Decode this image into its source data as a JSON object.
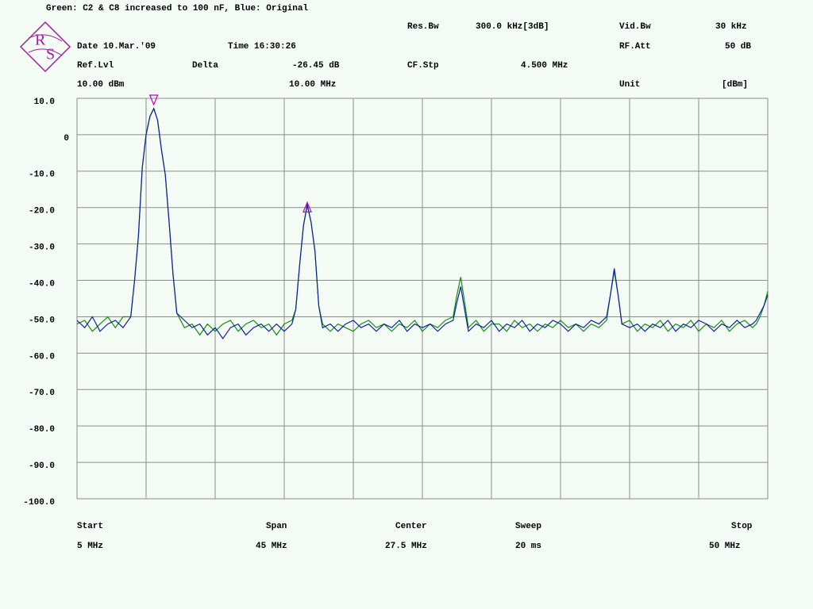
{
  "header": {
    "logo": [
      "R",
      "S"
    ],
    "res_bw_label": "Res.Bw",
    "res_bw": "300.0 kHz[3dB]",
    "vid_bw_label": "Vid.Bw",
    "vid_bw": "30 kHz",
    "date": "Date 10.Mar.'09",
    "time": "Time 16:30:26",
    "rf_att_label": "RF.Att",
    "rf_att": "50 dB",
    "ref_lvl_label": "Ref.Lvl",
    "ref_lvl": "10.00 dBm",
    "delta_label": "Delta",
    "delta": "-26.45 dB",
    "delta_freq": "10.00 MHz",
    "cf_stp_label": "CF.Stp",
    "cf_stp": "4.500 MHz",
    "unit_label": "Unit",
    "unit": "[dBm]"
  },
  "footer": {
    "start_label": "Start",
    "start": "5 MHz",
    "span_label": "Span",
    "span": "45 MHz",
    "center_label": "Center",
    "center": "27.5 MHz",
    "sweep_label": "Sweep",
    "sweep": "20 ms",
    "stop_label": "Stop",
    "stop": "50 MHz"
  },
  "chart_data": {
    "type": "line",
    "title": "Green: C2 & C8 increased to 100 nF, Blue: Original",
    "x": [
      5,
      5.5,
      6,
      6.5,
      7,
      7.5,
      8,
      8.5,
      8.75,
      9,
      9.25,
      9.5,
      9.75,
      10,
      10.25,
      10.5,
      10.75,
      11,
      11.25,
      11.5,
      12,
      12.5,
      13,
      13.5,
      14,
      14.5,
      15,
      15.5,
      16,
      16.5,
      17,
      17.5,
      18,
      18.5,
      19,
      19.25,
      19.5,
      19.75,
      20,
      20.25,
      20.5,
      20.75,
      21,
      21.5,
      22,
      22.5,
      23,
      23.5,
      24,
      24.5,
      25,
      25.5,
      26,
      26.5,
      27,
      27.5,
      28,
      28.5,
      29,
      29.5,
      29.75,
      30,
      30.25,
      30.5,
      31,
      31.5,
      32,
      32.5,
      33,
      33.5,
      34,
      34.5,
      35,
      35.5,
      36,
      36.5,
      37,
      37.5,
      38,
      38.5,
      39,
      39.5,
      39.75,
      40,
      40.25,
      40.5,
      41,
      41.5,
      42,
      42.5,
      43,
      43.5,
      44,
      44.5,
      45,
      45.5,
      46,
      46.5,
      47,
      47.5,
      48,
      48.5,
      49,
      49.25,
      49.5,
      49.75,
      50
    ],
    "series": [
      {
        "color": "#109010",
        "values": [
          -52,
          -51,
          -54,
          -52,
          -50,
          -53,
          -50,
          -50,
          -40,
          -28,
          -9,
          0,
          5,
          7.2,
          4,
          -4,
          -11,
          -24,
          -38,
          -49,
          -53,
          -52,
          -55,
          -52,
          -54,
          -52,
          -51,
          -54,
          -52,
          -51,
          -53,
          -52,
          -55,
          -52,
          -51,
          -48,
          -36,
          -25,
          -19.5,
          -24,
          -32,
          -47,
          -52,
          -54,
          -52,
          -53,
          -54,
          -52,
          -51,
          -53,
          -52,
          -54,
          -52,
          -53,
          -51,
          -54,
          -52,
          -53,
          -51,
          -50,
          -44,
          -39.1,
          -46,
          -53,
          -51,
          -54,
          -52,
          -52,
          -54,
          -51,
          -53,
          -52,
          -54,
          -52,
          -53,
          -51,
          -53,
          -52,
          -54,
          -52,
          -53,
          -51,
          -44,
          -37.5,
          -44,
          -52,
          -51,
          -54,
          -52,
          -53,
          -51,
          -54,
          -52,
          -53,
          -51,
          -54,
          -52,
          -53,
          -51,
          -54,
          -52,
          -51,
          -53,
          -52,
          -50,
          -47,
          -43
        ]
      },
      {
        "color": "#1020a0",
        "values": [
          -51,
          -53,
          -50,
          -54,
          -52,
          -51,
          -53,
          -50,
          -40,
          -28,
          -9,
          0,
          5,
          7.2,
          4,
          -4,
          -11,
          -24,
          -38,
          -49,
          -51,
          -53,
          -52,
          -55,
          -53,
          -56,
          -53,
          -52,
          -55,
          -53,
          -52,
          -54,
          -52,
          -54,
          -52,
          -48,
          -36,
          -25,
          -19.1,
          -24,
          -32,
          -47,
          -53,
          -52,
          -54,
          -52,
          -51,
          -53,
          -52,
          -54,
          -52,
          -53,
          -51,
          -54,
          -52,
          -53,
          -52,
          -54,
          -52,
          -51,
          -46,
          -41.7,
          -48,
          -54,
          -52,
          -53,
          -51,
          -54,
          -52,
          -53,
          -51,
          -54,
          -52,
          -53,
          -51,
          -52,
          -54,
          -52,
          -53,
          -51,
          -52,
          -50,
          -44,
          -36.7,
          -44,
          -52,
          -53,
          -52,
          -54,
          -52,
          -53,
          -51,
          -54,
          -52,
          -53,
          -51,
          -52,
          -54,
          -52,
          -53,
          -51,
          -53,
          -52,
          -51,
          -49,
          -47,
          -44
        ]
      }
    ],
    "markers": [
      {
        "x": 10,
        "y": 7.2
      },
      {
        "x": 20,
        "y": -19.25
      }
    ],
    "marker_color": "#c000c0",
    "xlim": [
      5,
      50
    ],
    "xticks": [
      5,
      9.5,
      14,
      18.5,
      23,
      27.5,
      32,
      36.5,
      41,
      45.5,
      50
    ],
    "ylim": [
      -100,
      10
    ],
    "yticks": [
      {
        "value": 10,
        "label": "10.0"
      },
      0,
      {
        "value": -10,
        "label": "-10.0"
      },
      {
        "value": -20,
        "label": "-20.0"
      },
      {
        "value": -30,
        "label": "-30.0"
      },
      {
        "value": -40,
        "label": "-40.0"
      },
      {
        "value": -50,
        "label": "-50.0"
      },
      {
        "value": -60,
        "label": "-60.0"
      },
      {
        "value": -70,
        "label": "-70.0"
      },
      {
        "value": -80,
        "label": "-80.0"
      },
      {
        "value": -90,
        "label": "-90.0"
      },
      {
        "value": -100,
        "label": "-100.0"
      }
    ],
    "grid": true
  }
}
